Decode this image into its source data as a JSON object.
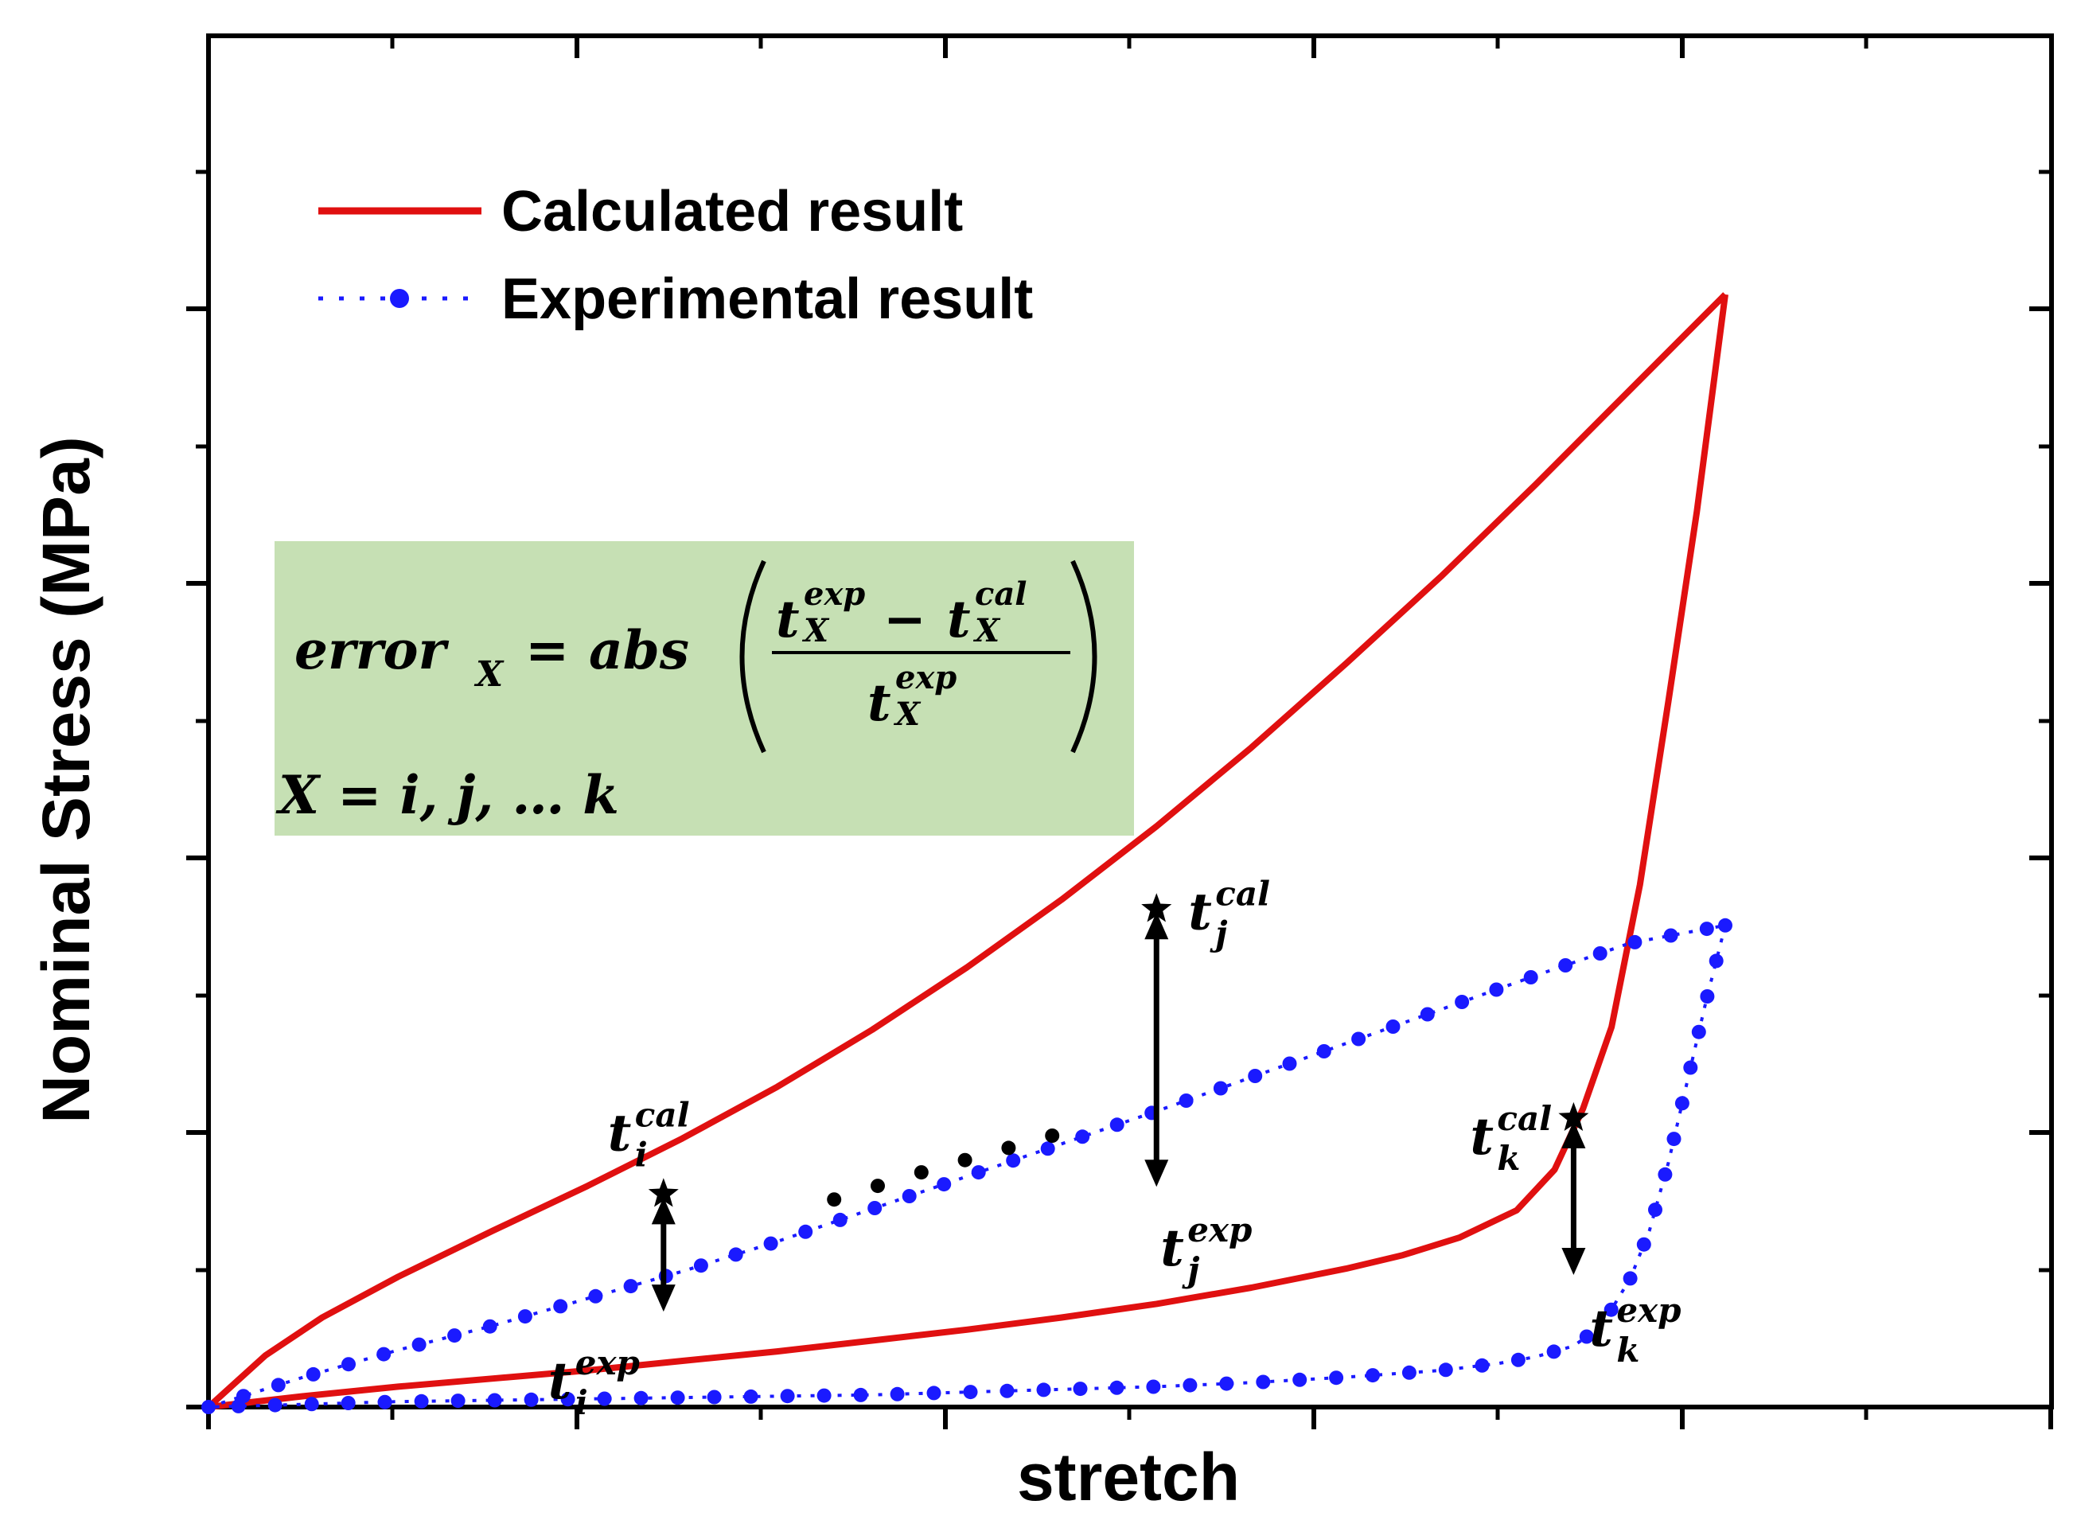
{
  "colors": {
    "calculated": "#e01010",
    "experimental": "#1a1aff",
    "formula_box": "#c6e0b4",
    "axis": "#000000"
  },
  "chart_data": {
    "type": "line",
    "title": "",
    "xlabel": "stretch",
    "ylabel": "Nominal Stress (MPa)",
    "xlim": [
      0,
      8
    ],
    "ylim": [
      0,
      8.2
    ],
    "x_tick_labels": [],
    "y_tick_labels": [],
    "legend": {
      "placement": "top-left",
      "entries": [
        "Calculated result",
        "Experimental result"
      ]
    },
    "series": [
      {
        "name": "Calculated result",
        "style": "solid",
        "loading": {
          "x": [
            0.0,
            0.3,
            0.6,
            1.0,
            1.5,
            2.0,
            2.5,
            3.0,
            3.5,
            4.0,
            4.5,
            5.0,
            5.5,
            6.0,
            6.5,
            7.0,
            7.5,
            8.0
          ],
          "y": [
            0.0,
            0.38,
            0.66,
            0.96,
            1.3,
            1.63,
            1.98,
            2.36,
            2.78,
            3.24,
            3.74,
            4.28,
            4.86,
            5.48,
            6.12,
            6.8,
            7.5,
            8.2
          ]
        },
        "unloading": {
          "x": [
            8.0,
            7.85,
            7.7,
            7.55,
            7.4,
            7.25,
            7.1,
            6.9,
            6.6,
            6.3,
            6.0,
            5.5,
            5.0,
            4.5,
            4.0,
            3.5,
            3.0,
            2.5,
            2.0,
            1.5,
            1.0,
            0.5,
            0.0
          ],
          "y": [
            8.2,
            6.6,
            5.2,
            3.85,
            2.8,
            2.2,
            1.75,
            1.45,
            1.25,
            1.12,
            1.02,
            0.88,
            0.76,
            0.66,
            0.57,
            0.49,
            0.41,
            0.34,
            0.27,
            0.21,
            0.15,
            0.08,
            0.0
          ]
        }
      },
      {
        "name": "Experimental result",
        "style": "dotted-with-markers",
        "loading": {
          "x": [
            0.0,
            0.5,
            1.0,
            1.5,
            2.0,
            2.5,
            3.0,
            3.5,
            4.0,
            4.5,
            5.0,
            5.5,
            6.0,
            6.5,
            7.0,
            7.5,
            8.0
          ],
          "y": [
            0.0,
            0.22,
            0.42,
            0.6,
            0.8,
            1.0,
            1.22,
            1.46,
            1.7,
            1.94,
            2.18,
            2.43,
            2.68,
            2.93,
            3.18,
            3.42,
            3.55
          ]
        },
        "unloading": {
          "x": [
            8.0,
            7.9,
            7.8,
            7.7,
            7.6,
            7.5,
            7.4,
            7.3,
            7.2,
            7.0,
            6.8,
            6.5,
            6.0,
            5.5,
            5.0,
            4.5,
            4.0,
            3.5,
            3.0,
            2.5,
            2.0,
            1.5,
            1.0,
            0.5,
            0.0
          ],
          "y": [
            3.55,
            3.0,
            2.4,
            1.8,
            1.3,
            0.95,
            0.72,
            0.55,
            0.45,
            0.37,
            0.32,
            0.27,
            0.22,
            0.18,
            0.15,
            0.13,
            0.11,
            0.09,
            0.08,
            0.07,
            0.06,
            0.05,
            0.04,
            0.02,
            0.0
          ]
        }
      }
    ],
    "annotations": [
      {
        "id": "i",
        "x": 2.4,
        "y_cal": 1.57,
        "y_exp": 0.68,
        "cal_label": "t",
        "cal_sub": "i",
        "cal_sup": "cal",
        "exp_label": "t",
        "exp_sub": "i",
        "exp_sup": "exp"
      },
      {
        "id": "j",
        "x": 5.0,
        "y_cal": 3.67,
        "y_exp": 1.6,
        "cal_label": "t",
        "cal_sub": "j",
        "cal_sup": "cal",
        "exp_label": "t",
        "exp_sub": "j",
        "exp_sup": "exp"
      },
      {
        "id": "k",
        "x": 7.2,
        "y_cal": 2.13,
        "y_exp": 0.95,
        "cal_label": "t",
        "cal_sub": "k",
        "cal_sup": "cal",
        "exp_label": "t",
        "exp_sub": "k",
        "exp_sup": "exp"
      }
    ],
    "ellipsis_dots": {
      "x": [
        3.3,
        3.53,
        3.76,
        3.99,
        4.22,
        4.45
      ],
      "y": [
        1.53,
        1.63,
        1.73,
        1.82,
        1.91,
        2.0
      ]
    }
  },
  "formula": {
    "lhs": "error",
    "lhs_sub": "X",
    "equals": "=",
    "func": "abs",
    "numer_t1": "t",
    "numer_t1_sup": "exp",
    "numer_t1_sub": "X",
    "minus": "−",
    "numer_t2": "t",
    "numer_t2_sup": "cal",
    "numer_t2_sub": "X",
    "denom_t": "t",
    "denom_t_sup": "exp",
    "denom_t_sub": "X",
    "domain": "X = i, j, … k"
  }
}
